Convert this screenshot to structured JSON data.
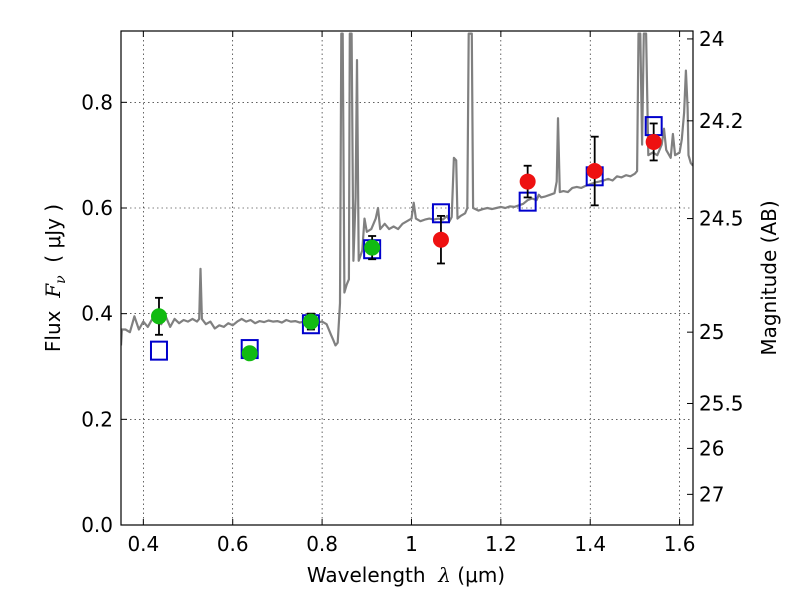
{
  "chart_data": {
    "type": "scatter",
    "title": "",
    "xlabel_parts": {
      "pre": "Wavelength  ",
      "sym": "λ",
      "post": " (μm)"
    },
    "ylabel_parts": {
      "pre": "Flux  ",
      "sym": "F",
      "sub": "ν",
      "post": "  ( μJy )"
    },
    "y2label": "Magnitude (AB)",
    "xlim": [
      0.35,
      1.63
    ],
    "ylim": [
      0.0,
      0.935
    ],
    "grid": true,
    "legend": "none",
    "x_ticks": [
      {
        "value": 0.4,
        "label": "0.4"
      },
      {
        "value": 0.6,
        "label": "0.6"
      },
      {
        "value": 0.8,
        "label": "0.8"
      },
      {
        "value": 1.0,
        "label": "1"
      },
      {
        "value": 1.2,
        "label": "1.2"
      },
      {
        "value": 1.4,
        "label": "1.4"
      },
      {
        "value": 1.6,
        "label": "1.6"
      }
    ],
    "y_ticks": [
      {
        "value": 0.0,
        "label": "0.0"
      },
      {
        "value": 0.2,
        "label": "0.2"
      },
      {
        "value": 0.4,
        "label": "0.4"
      },
      {
        "value": 0.6,
        "label": "0.6"
      },
      {
        "value": 0.8,
        "label": "0.8"
      }
    ],
    "y2_ticks": [
      {
        "flux": 0.92,
        "label": "24"
      },
      {
        "flux": 0.765,
        "label": "24.2"
      },
      {
        "flux": 0.58,
        "label": "24.5"
      },
      {
        "flux": 0.365,
        "label": "25"
      },
      {
        "flux": 0.23,
        "label": "25.5"
      },
      {
        "flux": 0.145,
        "label": "26"
      },
      {
        "flux": 0.058,
        "label": "27"
      }
    ],
    "series": [
      {
        "kind": "line",
        "color": "#808080",
        "points": [
          [
            0.35,
            0.34
          ],
          [
            0.352,
            0.37
          ],
          [
            0.36,
            0.37
          ],
          [
            0.37,
            0.365
          ],
          [
            0.375,
            0.38
          ],
          [
            0.38,
            0.395
          ],
          [
            0.39,
            0.37
          ],
          [
            0.4,
            0.385
          ],
          [
            0.41,
            0.375
          ],
          [
            0.42,
            0.39
          ],
          [
            0.43,
            0.385
          ],
          [
            0.44,
            0.38
          ],
          [
            0.45,
            0.395
          ],
          [
            0.46,
            0.375
          ],
          [
            0.47,
            0.39
          ],
          [
            0.48,
            0.382
          ],
          [
            0.49,
            0.388
          ],
          [
            0.5,
            0.385
          ],
          [
            0.51,
            0.39
          ],
          [
            0.52,
            0.385
          ],
          [
            0.525,
            0.39
          ],
          [
            0.528,
            0.485
          ],
          [
            0.531,
            0.39
          ],
          [
            0.54,
            0.38
          ],
          [
            0.55,
            0.385
          ],
          [
            0.56,
            0.372
          ],
          [
            0.57,
            0.378
          ],
          [
            0.58,
            0.375
          ],
          [
            0.59,
            0.382
          ],
          [
            0.6,
            0.378
          ],
          [
            0.61,
            0.385
          ],
          [
            0.62,
            0.39
          ],
          [
            0.63,
            0.385
          ],
          [
            0.64,
            0.388
          ],
          [
            0.65,
            0.382
          ],
          [
            0.66,
            0.386
          ],
          [
            0.67,
            0.384
          ],
          [
            0.68,
            0.387
          ],
          [
            0.69,
            0.385
          ],
          [
            0.7,
            0.386
          ],
          [
            0.71,
            0.383
          ],
          [
            0.72,
            0.388
          ],
          [
            0.73,
            0.385
          ],
          [
            0.74,
            0.386
          ],
          [
            0.75,
            0.383
          ],
          [
            0.76,
            0.385
          ],
          [
            0.77,
            0.386
          ],
          [
            0.78,
            0.384
          ],
          [
            0.79,
            0.383
          ],
          [
            0.8,
            0.385
          ],
          [
            0.81,
            0.38
          ],
          [
            0.82,
            0.36
          ],
          [
            0.825,
            0.35
          ],
          [
            0.83,
            0.34
          ],
          [
            0.835,
            0.345
          ],
          [
            0.84,
            0.42
          ],
          [
            0.843,
            0.93
          ],
          [
            0.846,
            0.93
          ],
          [
            0.85,
            0.44
          ],
          [
            0.855,
            0.455
          ],
          [
            0.86,
            0.465
          ],
          [
            0.862,
            0.93
          ],
          [
            0.866,
            0.93
          ],
          [
            0.87,
            0.5
          ],
          [
            0.875,
            0.62
          ],
          [
            0.878,
            0.88
          ],
          [
            0.882,
            0.5
          ],
          [
            0.89,
            0.52
          ],
          [
            0.895,
            0.58
          ],
          [
            0.9,
            0.555
          ],
          [
            0.91,
            0.56
          ],
          [
            0.92,
            0.58
          ],
          [
            0.925,
            0.6
          ],
          [
            0.93,
            0.56
          ],
          [
            0.94,
            0.57
          ],
          [
            0.95,
            0.56
          ],
          [
            0.96,
            0.565
          ],
          [
            0.97,
            0.56
          ],
          [
            0.98,
            0.57
          ],
          [
            0.99,
            0.575
          ],
          [
            1.0,
            0.58
          ],
          [
            1.005,
            0.61
          ],
          [
            1.01,
            0.58
          ],
          [
            1.02,
            0.575
          ],
          [
            1.03,
            0.578
          ],
          [
            1.04,
            0.58
          ],
          [
            1.05,
            0.578
          ],
          [
            1.06,
            0.58
          ],
          [
            1.07,
            0.578
          ],
          [
            1.08,
            0.585
          ],
          [
            1.085,
            0.575
          ],
          [
            1.09,
            0.583
          ],
          [
            1.095,
            0.695
          ],
          [
            1.1,
            0.69
          ],
          [
            1.103,
            0.58
          ],
          [
            1.11,
            0.585
          ],
          [
            1.12,
            0.59
          ],
          [
            1.125,
            0.6
          ],
          [
            1.128,
            0.93
          ],
          [
            1.135,
            0.93
          ],
          [
            1.138,
            0.6
          ],
          [
            1.15,
            0.595
          ],
          [
            1.16,
            0.598
          ],
          [
            1.17,
            0.6
          ],
          [
            1.18,
            0.598
          ],
          [
            1.19,
            0.6
          ],
          [
            1.2,
            0.602
          ],
          [
            1.21,
            0.6
          ],
          [
            1.22,
            0.603
          ],
          [
            1.23,
            0.602
          ],
          [
            1.24,
            0.605
          ],
          [
            1.25,
            0.608
          ],
          [
            1.26,
            0.615
          ],
          [
            1.27,
            0.618
          ],
          [
            1.28,
            0.615
          ],
          [
            1.285,
            0.625
          ],
          [
            1.29,
            0.62
          ],
          [
            1.3,
            0.622
          ],
          [
            1.31,
            0.625
          ],
          [
            1.32,
            0.628
          ],
          [
            1.325,
            0.65
          ],
          [
            1.328,
            0.77
          ],
          [
            1.332,
            0.63
          ],
          [
            1.34,
            0.632
          ],
          [
            1.35,
            0.63
          ],
          [
            1.36,
            0.638
          ],
          [
            1.37,
            0.64
          ],
          [
            1.38,
            0.638
          ],
          [
            1.39,
            0.642
          ],
          [
            1.4,
            0.645
          ],
          [
            1.41,
            0.648
          ],
          [
            1.42,
            0.65
          ],
          [
            1.43,
            0.652
          ],
          [
            1.44,
            0.655
          ],
          [
            1.45,
            0.652
          ],
          [
            1.46,
            0.66
          ],
          [
            1.47,
            0.658
          ],
          [
            1.48,
            0.662
          ],
          [
            1.49,
            0.66
          ],
          [
            1.5,
            0.665
          ],
          [
            1.505,
            0.67
          ],
          [
            1.508,
            0.93
          ],
          [
            1.512,
            0.93
          ],
          [
            1.516,
            0.72
          ],
          [
            1.52,
            0.93
          ],
          [
            1.525,
            0.93
          ],
          [
            1.53,
            0.7
          ],
          [
            1.54,
            0.705
          ],
          [
            1.55,
            0.7
          ],
          [
            1.56,
            0.72
          ],
          [
            1.565,
            0.75
          ],
          [
            1.57,
            0.71
          ],
          [
            1.58,
            0.695
          ],
          [
            1.585,
            0.74
          ],
          [
            1.59,
            0.7
          ],
          [
            1.6,
            0.705
          ],
          [
            1.605,
            0.73
          ],
          [
            1.61,
            0.78
          ],
          [
            1.614,
            0.86
          ],
          [
            1.618,
            0.79
          ],
          [
            1.62,
            0.7
          ],
          [
            1.625,
            0.685
          ],
          [
            1.63,
            0.68
          ]
        ]
      },
      {
        "kind": "open-square",
        "color": "#0000cc",
        "points": [
          [
            0.435,
            0.33
          ],
          [
            0.638,
            0.333
          ],
          [
            0.775,
            0.38
          ],
          [
            0.912,
            0.522
          ],
          [
            1.066,
            0.59
          ],
          [
            1.26,
            0.612
          ],
          [
            1.41,
            0.66
          ],
          [
            1.542,
            0.755
          ]
        ]
      },
      {
        "kind": "filled-circle-errorbar",
        "color": "#11bb11",
        "points": [
          {
            "x": 0.435,
            "y": 0.395,
            "err": 0.035
          },
          {
            "x": 0.638,
            "y": 0.325,
            "err": 0.01
          },
          {
            "x": 0.775,
            "y": 0.385,
            "err": 0.015
          },
          {
            "x": 0.912,
            "y": 0.525,
            "err": 0.022
          }
        ]
      },
      {
        "kind": "filled-circle-errorbar",
        "color": "#ee1111",
        "points": [
          {
            "x": 1.066,
            "y": 0.54,
            "err": 0.045
          },
          {
            "x": 1.26,
            "y": 0.65,
            "err": 0.03
          },
          {
            "x": 1.41,
            "y": 0.67,
            "err": 0.065
          },
          {
            "x": 1.542,
            "y": 0.725,
            "err": 0.035
          }
        ]
      }
    ]
  }
}
